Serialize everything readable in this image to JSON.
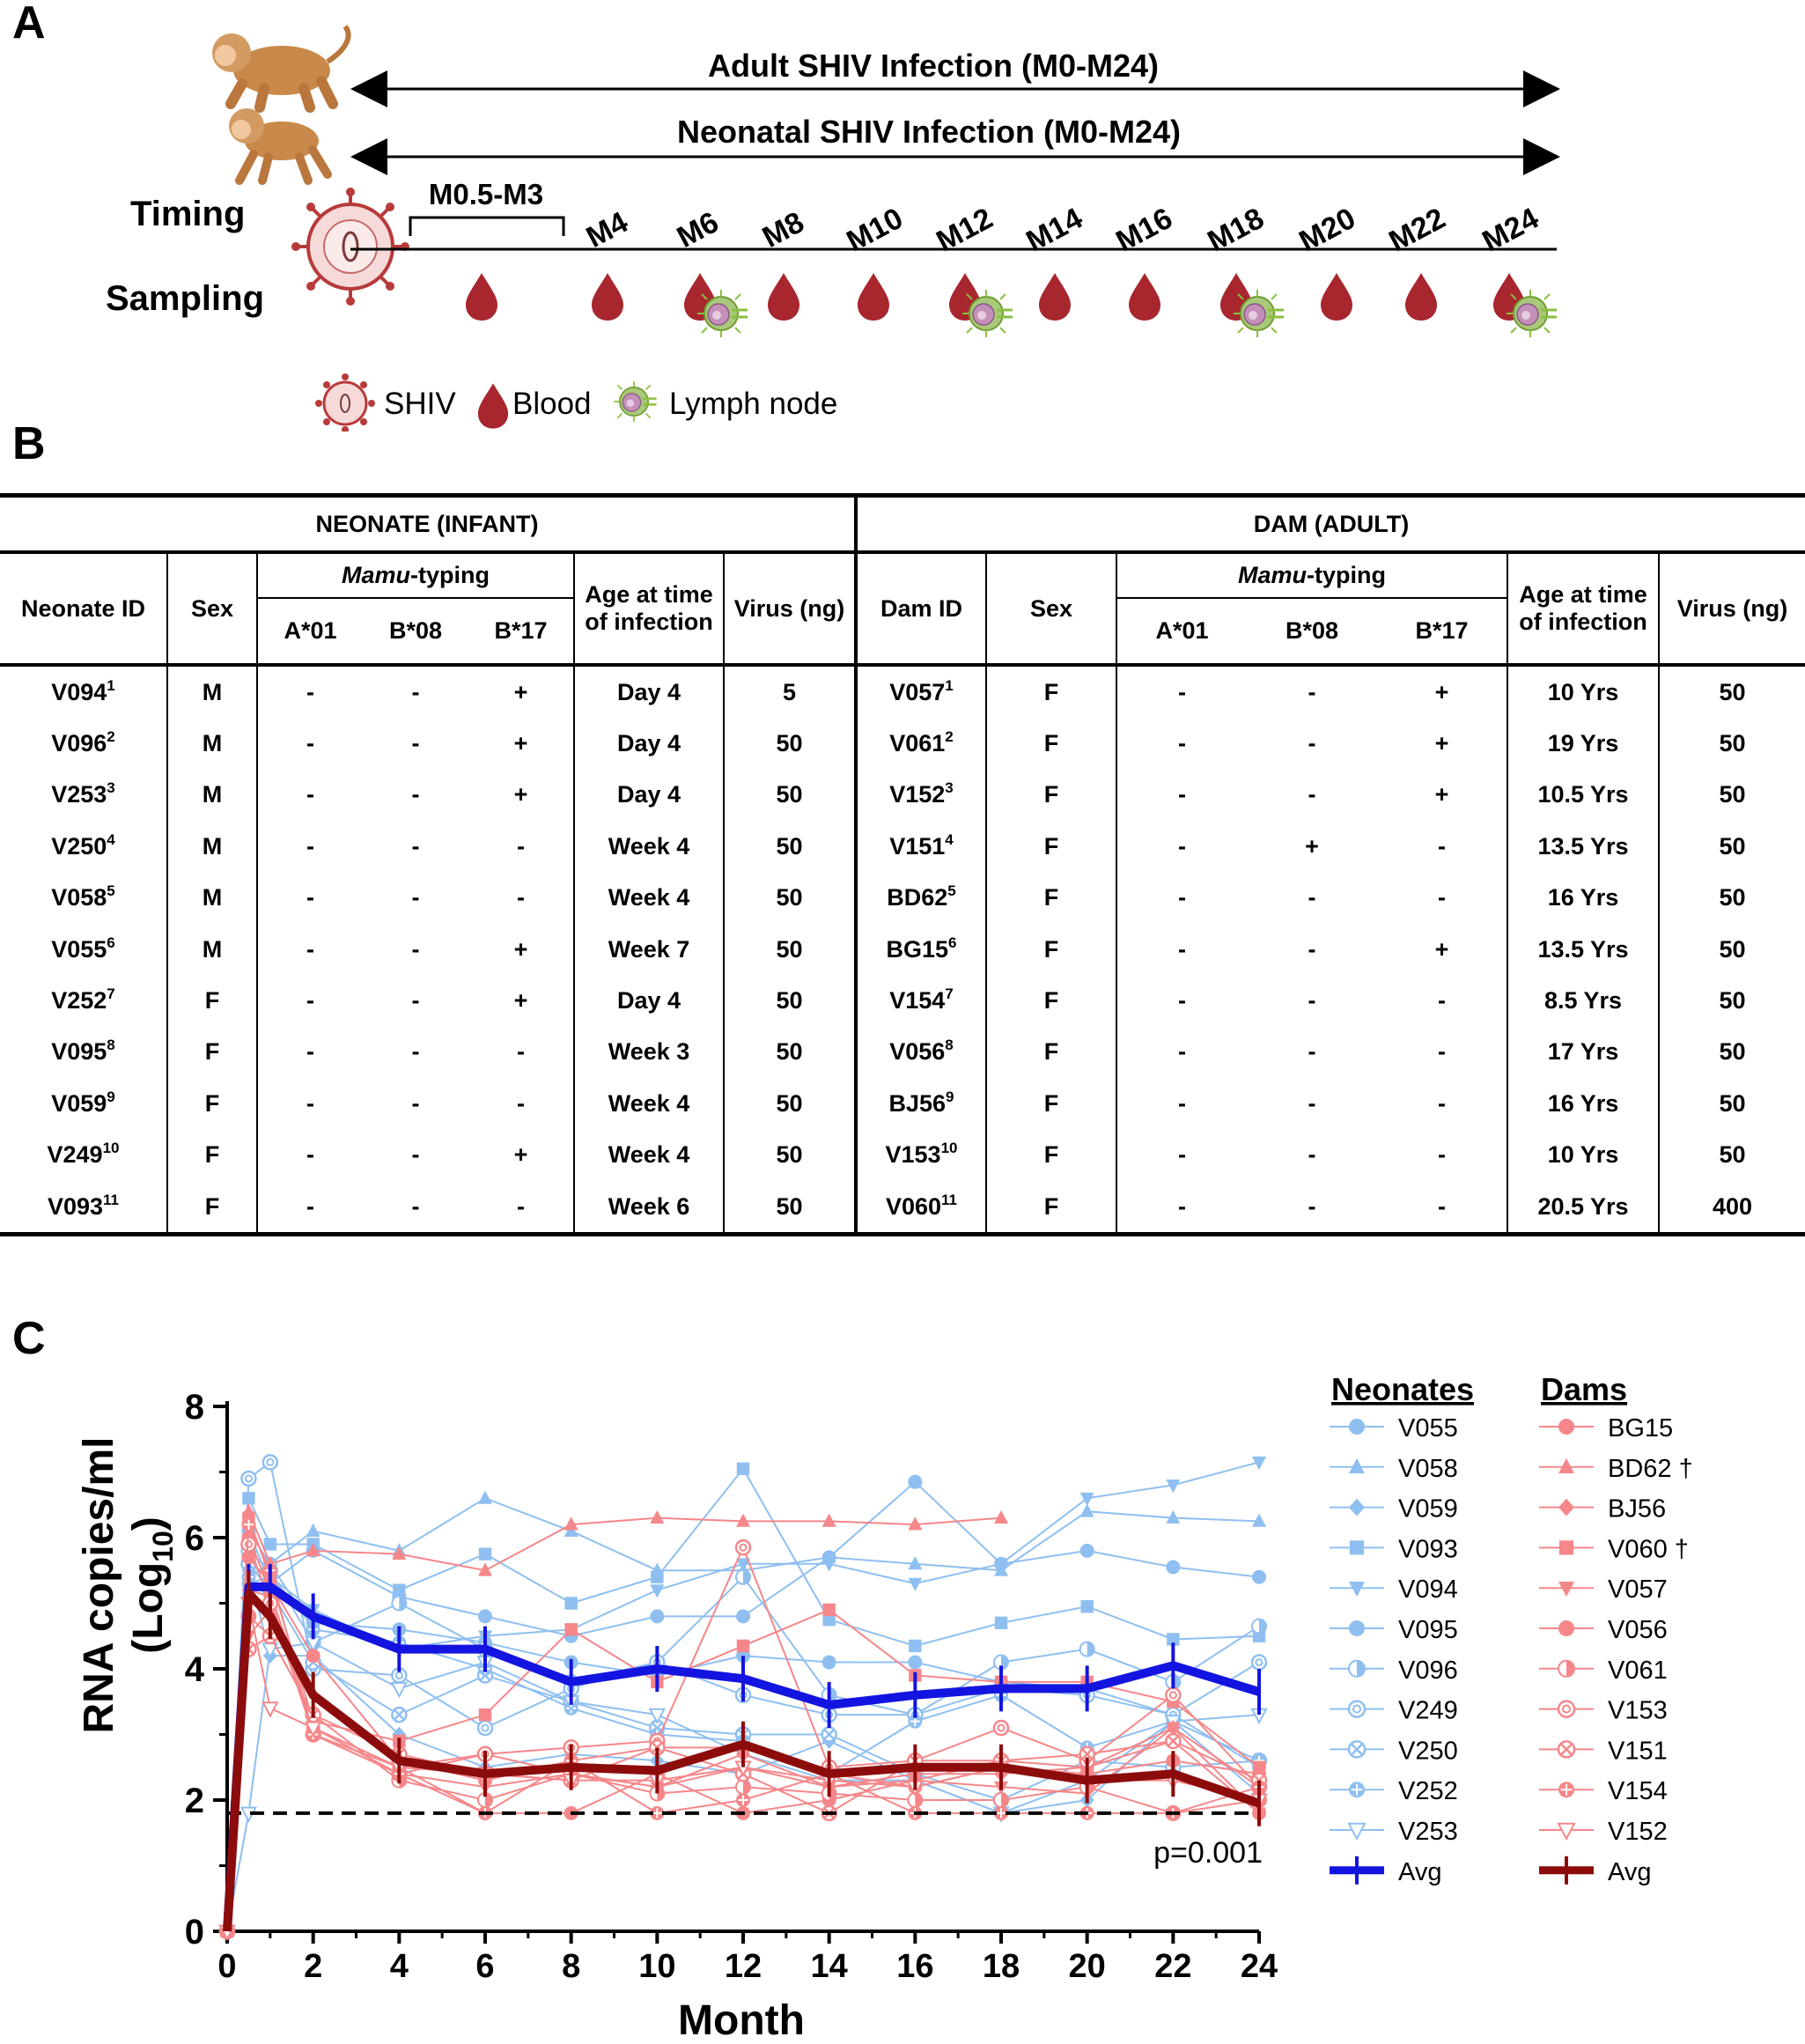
{
  "panels": {
    "a": "A",
    "b": "B",
    "c": "C"
  },
  "timeline": {
    "adult_label": "Adult SHIV Infection (M0-M24)",
    "neonatal_label": "Neonatal SHIV Infection (M0-M24)",
    "timing_label": "Timing",
    "sampling_label": "Sampling",
    "bracket_label": "M0.5-M3",
    "months": [
      "M4",
      "M6",
      "M8",
      "M10",
      "M12",
      "M14",
      "M16",
      "M18",
      "M20",
      "M22",
      "M24"
    ],
    "legend": {
      "shiv": "SHIV",
      "blood": "Blood",
      "lymph": "Lymph node"
    },
    "colors": {
      "blood": "#a8262e",
      "virus": "#b83a3a",
      "lymph_green": "#8bbf3e",
      "monkey": "#c8894a"
    }
  },
  "table": {
    "neonate_group": "NEONATE (INFANT)",
    "dam_group": "DAM (ADULT)",
    "neonate_cols": {
      "id": "Neonate ID",
      "sex": "Sex",
      "mamu_italic": "Mamu",
      "mamu_rest": "-typing",
      "a01": "A*01",
      "b08": "B*08",
      "b17": "B*17",
      "age": "Age at time of infection",
      "virus": "Virus (ng)"
    },
    "dam_cols": {
      "id": "Dam ID",
      "sex": "Sex",
      "mamu_italic": "Mamu",
      "mamu_rest": "-typing",
      "a01": "A*01",
      "b08": "B*08",
      "b17": "B*17",
      "age": "Age at time of infection",
      "virus": "Virus (ng)"
    },
    "rows": [
      {
        "nid": "V094",
        "nsup": "1",
        "nsex": "M",
        "na": "-",
        "nb8": "-",
        "nb17": "+",
        "nage": "Day 4",
        "nvirus": "5",
        "did": "V057",
        "dsup": "1",
        "dsex": "F",
        "da": "-",
        "db8": "-",
        "db17": "+",
        "dage": "10 Yrs",
        "dvirus": "50"
      },
      {
        "nid": "V096",
        "nsup": "2",
        "nsex": "M",
        "na": "-",
        "nb8": "-",
        "nb17": "+",
        "nage": "Day 4",
        "nvirus": "50",
        "did": "V061",
        "dsup": "2",
        "dsex": "F",
        "da": "-",
        "db8": "-",
        "db17": "+",
        "dage": "19 Yrs",
        "dvirus": "50"
      },
      {
        "nid": "V253",
        "nsup": "3",
        "nsex": "M",
        "na": "-",
        "nb8": "-",
        "nb17": "+",
        "nage": "Day 4",
        "nvirus": "50",
        "did": "V152",
        "dsup": "3",
        "dsex": "F",
        "da": "-",
        "db8": "-",
        "db17": "+",
        "dage": "10.5 Yrs",
        "dvirus": "50"
      },
      {
        "nid": "V250",
        "nsup": "4",
        "nsex": "M",
        "na": "-",
        "nb8": "-",
        "nb17": "-",
        "nage": "Week 4",
        "nvirus": "50",
        "did": "V151",
        "dsup": "4",
        "dsex": "F",
        "da": "-",
        "db8": "+",
        "db17": "-",
        "dage": "13.5 Yrs",
        "dvirus": "50"
      },
      {
        "nid": "V058",
        "nsup": "5",
        "nsex": "M",
        "na": "-",
        "nb8": "-",
        "nb17": "-",
        "nage": "Week 4",
        "nvirus": "50",
        "did": "BD62",
        "dsup": "5",
        "dsex": "F",
        "da": "-",
        "db8": "-",
        "db17": "-",
        "dage": "16 Yrs",
        "dvirus": "50"
      },
      {
        "nid": "V055",
        "nsup": "6",
        "nsex": "M",
        "na": "-",
        "nb8": "-",
        "nb17": "+",
        "nage": "Week 7",
        "nvirus": "50",
        "did": "BG15",
        "dsup": "6",
        "dsex": "F",
        "da": "-",
        "db8": "-",
        "db17": "+",
        "dage": "13.5 Yrs",
        "dvirus": "50"
      },
      {
        "nid": "V252",
        "nsup": "7",
        "nsex": "F",
        "na": "-",
        "nb8": "-",
        "nb17": "+",
        "nage": "Day 4",
        "nvirus": "50",
        "did": "V154",
        "dsup": "7",
        "dsex": "F",
        "da": "-",
        "db8": "-",
        "db17": "-",
        "dage": "8.5 Yrs",
        "dvirus": "50"
      },
      {
        "nid": "V095",
        "nsup": "8",
        "nsex": "F",
        "na": "-",
        "nb8": "-",
        "nb17": "-",
        "nage": "Week 3",
        "nvirus": "50",
        "did": "V056",
        "dsup": "8",
        "dsex": "F",
        "da": "-",
        "db8": "-",
        "db17": "-",
        "dage": "17 Yrs",
        "dvirus": "50"
      },
      {
        "nid": "V059",
        "nsup": "9",
        "nsex": "F",
        "na": "-",
        "nb8": "-",
        "nb17": "-",
        "nage": "Week 4",
        "nvirus": "50",
        "did": "BJ56",
        "dsup": "9",
        "dsex": "F",
        "da": "-",
        "db8": "-",
        "db17": "-",
        "dage": "16 Yrs",
        "dvirus": "50"
      },
      {
        "nid": "V249",
        "nsup": "10",
        "nsex": "F",
        "na": "-",
        "nb8": "-",
        "nb17": "+",
        "nage": "Week 4",
        "nvirus": "50",
        "did": "V153",
        "dsup": "10",
        "dsex": "F",
        "da": "-",
        "db8": "-",
        "db17": "-",
        "dage": "10 Yrs",
        "dvirus": "50"
      },
      {
        "nid": "V093",
        "nsup": "11",
        "nsex": "F",
        "na": "-",
        "nb8": "-",
        "nb17": "-",
        "nage": "Week 6",
        "nvirus": "50",
        "did": "V060",
        "dsup": "11",
        "dsex": "F",
        "da": "-",
        "db8": "-",
        "db17": "-",
        "dage": "20.5 Yrs",
        "dvirus": "400"
      }
    ]
  },
  "chart_data": {
    "type": "line",
    "xlabel": "Month",
    "ylabel_main": "RNA copies/ml",
    "ylabel_sub": "(Log",
    "ylabel_sub_idx": "10",
    "ylabel_close": ")",
    "xlim": [
      0,
      24
    ],
    "ylim": [
      0,
      8
    ],
    "xticks": [
      "0",
      "2",
      "4",
      "6",
      "8",
      "10",
      "12",
      "14",
      "16",
      "18",
      "20",
      "22",
      "24"
    ],
    "yticks": [
      "0",
      "2",
      "4",
      "6",
      "8"
    ],
    "detection_limit": 1.8,
    "pvalue": "p=0.001",
    "x": [
      0,
      0.5,
      1,
      2,
      4,
      6,
      8,
      10,
      12,
      14,
      16,
      18,
      20,
      22,
      24
    ],
    "legend": {
      "neonates_title": "Neonates",
      "dams_title": "Dams",
      "avg_label": "Avg"
    },
    "colors": {
      "neonate": "#8fbff0",
      "dam": "#f5878a",
      "neonate_avg": "#1414e0",
      "dam_avg": "#8c0c0c"
    },
    "neonates": [
      {
        "name": "V055",
        "marker": "circle",
        "values": [
          0,
          5.3,
          5.4,
          4.7,
          4.6,
          4.4,
          4.1,
          3.9,
          4.2,
          4.1,
          4.1,
          3.8,
          3.7,
          3.3,
          2.5
        ]
      },
      {
        "name": "V058",
        "marker": "triangle",
        "values": [
          0,
          6.1,
          5.6,
          6.1,
          5.8,
          6.6,
          6.1,
          5.5,
          5.5,
          5.7,
          5.6,
          5.5,
          6.4,
          6.3,
          6.25
        ]
      },
      {
        "name": "V059",
        "marker": "diamond",
        "values": [
          0,
          5.5,
          4.2,
          4.2,
          3.0,
          2.5,
          2.7,
          2.6,
          2.4,
          2.9,
          2.3,
          1.8,
          2.0,
          3.2,
          2.1
        ]
      },
      {
        "name": "V093",
        "marker": "square",
        "values": [
          0,
          6.6,
          5.9,
          5.9,
          5.2,
          5.75,
          5.0,
          5.4,
          7.05,
          4.75,
          4.35,
          4.7,
          4.95,
          4.45,
          4.5
        ]
      },
      {
        "name": "V094",
        "marker": "triangle-down",
        "values": [
          0,
          5.6,
          5.4,
          4.9,
          4.3,
          4.5,
          4.6,
          5.2,
          5.6,
          5.6,
          5.3,
          5.6,
          6.6,
          6.8,
          7.15
        ]
      },
      {
        "name": "V095",
        "marker": "circle",
        "values": [
          0,
          6.1,
          5.3,
          5.8,
          5.1,
          4.8,
          4.5,
          4.8,
          4.8,
          5.7,
          6.85,
          5.6,
          5.8,
          5.55,
          5.4
        ]
      },
      {
        "name": "V096",
        "marker": "circle-half",
        "values": [
          0,
          5.8,
          5.5,
          4.4,
          5.0,
          4.3,
          3.8,
          4.1,
          5.4,
          3.6,
          3.3,
          4.1,
          4.3,
          3.8,
          4.65
        ]
      },
      {
        "name": "V249",
        "marker": "circle-dot",
        "values": [
          0,
          6.9,
          7.15,
          4.0,
          3.9,
          3.1,
          3.7,
          4.1,
          3.6,
          3.3,
          3.3,
          3.7,
          3.6,
          3.3,
          4.1
        ]
      },
      {
        "name": "V250",
        "marker": "circle-x",
        "values": [
          0,
          5.6,
          5.2,
          4.1,
          3.3,
          3.9,
          3.5,
          3.1,
          3.0,
          3.0,
          2.4,
          2.0,
          2.6,
          2.5,
          2.6
        ]
      },
      {
        "name": "V252",
        "marker": "circle-plus",
        "values": [
          0,
          5.4,
          5.6,
          4.6,
          4.4,
          4.0,
          3.4,
          3.0,
          2.9,
          2.4,
          3.2,
          3.6,
          2.8,
          3.2,
          2.6
        ]
      },
      {
        "name": "V253",
        "marker": "triangle-down-open",
        "values": [
          0,
          1.8,
          4.3,
          4.4,
          3.7,
          4.1,
          3.5,
          3.3,
          2.7,
          2.3,
          2.3,
          1.8,
          2.3,
          3.2,
          3.3
        ]
      }
    ],
    "dams": [
      {
        "name": "BG15",
        "marker": "circle",
        "values": [
          0,
          5.7,
          5.3,
          4.2,
          2.6,
          2.3,
          2.6,
          2.8,
          2.8,
          2.4,
          2.2,
          2.5,
          2.4,
          2.6,
          2.4
        ]
      },
      {
        "name": "BD62 †",
        "marker": "triangle",
        "values": [
          0,
          6.4,
          5.6,
          5.8,
          5.75,
          5.5,
          6.2,
          6.3,
          6.25,
          6.25,
          6.2,
          6.3,
          null,
          null,
          null
        ]
      },
      {
        "name": "BJ56",
        "marker": "diamond",
        "values": [
          0,
          5.2,
          5.1,
          3.0,
          2.5,
          2.7,
          2.4,
          2.2,
          2.7,
          2.2,
          2.4,
          2.4,
          2.5,
          3.1,
          2.2
        ]
      },
      {
        "name": "V060 †",
        "marker": "square",
        "values": [
          0,
          6.3,
          5.4,
          3.2,
          2.9,
          3.3,
          4.6,
          3.8,
          4.35,
          4.9,
          3.9,
          3.8,
          3.8,
          3.5,
          2.5
        ]
      },
      {
        "name": "V057",
        "marker": "triangle-down",
        "values": [
          0,
          4.5,
          4.9,
          3.1,
          2.4,
          2.2,
          2.4,
          2.2,
          2.5,
          2.2,
          2.3,
          2.2,
          2.1,
          3.1,
          1.8
        ]
      },
      {
        "name": "V056",
        "marker": "circle",
        "values": [
          0,
          6.0,
          5.2,
          3.1,
          2.5,
          1.8,
          1.8,
          2.4,
          1.8,
          2.0,
          2.3,
          2.6,
          2.5,
          2.9,
          1.8
        ]
      },
      {
        "name": "V061",
        "marker": "circle-half",
        "values": [
          0,
          4.8,
          4.5,
          3.3,
          2.3,
          2.0,
          2.4,
          2.1,
          2.2,
          2.1,
          2.0,
          2.0,
          2.2,
          1.8,
          2.0
        ]
      },
      {
        "name": "V153",
        "marker": "circle-dot",
        "values": [
          0,
          5.9,
          5.0,
          3.0,
          2.4,
          2.7,
          2.8,
          2.9,
          5.85,
          2.5,
          2.6,
          3.1,
          2.6,
          3.6,
          2.2
        ]
      },
      {
        "name": "V151",
        "marker": "circle-x",
        "values": [
          0,
          4.3,
          4.5,
          3.3,
          2.7,
          2.4,
          2.3,
          2.8,
          2.4,
          1.8,
          2.6,
          2.6,
          2.7,
          2.9,
          2.3
        ]
      },
      {
        "name": "V154",
        "marker": "circle-plus",
        "values": [
          0,
          6.2,
          5.5,
          3.0,
          2.4,
          1.8,
          2.6,
          1.8,
          2.0,
          2.4,
          1.8,
          1.8,
          1.8,
          1.8,
          2.2
        ]
      },
      {
        "name": "V152",
        "marker": "triangle-down-open",
        "values": [
          0,
          5.0,
          3.4,
          3.1,
          2.5,
          2.4,
          2.3,
          2.3,
          2.5,
          2.3,
          2.2,
          2.5,
          2.3,
          2.3,
          2.0
        ]
      }
    ],
    "neonate_avg": {
      "name": "Avg",
      "values": [
        0,
        5.25,
        5.25,
        4.8,
        4.3,
        4.3,
        3.8,
        4.0,
        3.85,
        3.45,
        3.6,
        3.7,
        3.7,
        4.05,
        3.65
      ]
    },
    "dam_avg": {
      "name": "Avg",
      "values": [
        0,
        5.15,
        4.8,
        3.6,
        2.6,
        2.4,
        2.5,
        2.45,
        2.85,
        2.4,
        2.5,
        2.5,
        2.3,
        2.4,
        1.95
      ]
    }
  }
}
